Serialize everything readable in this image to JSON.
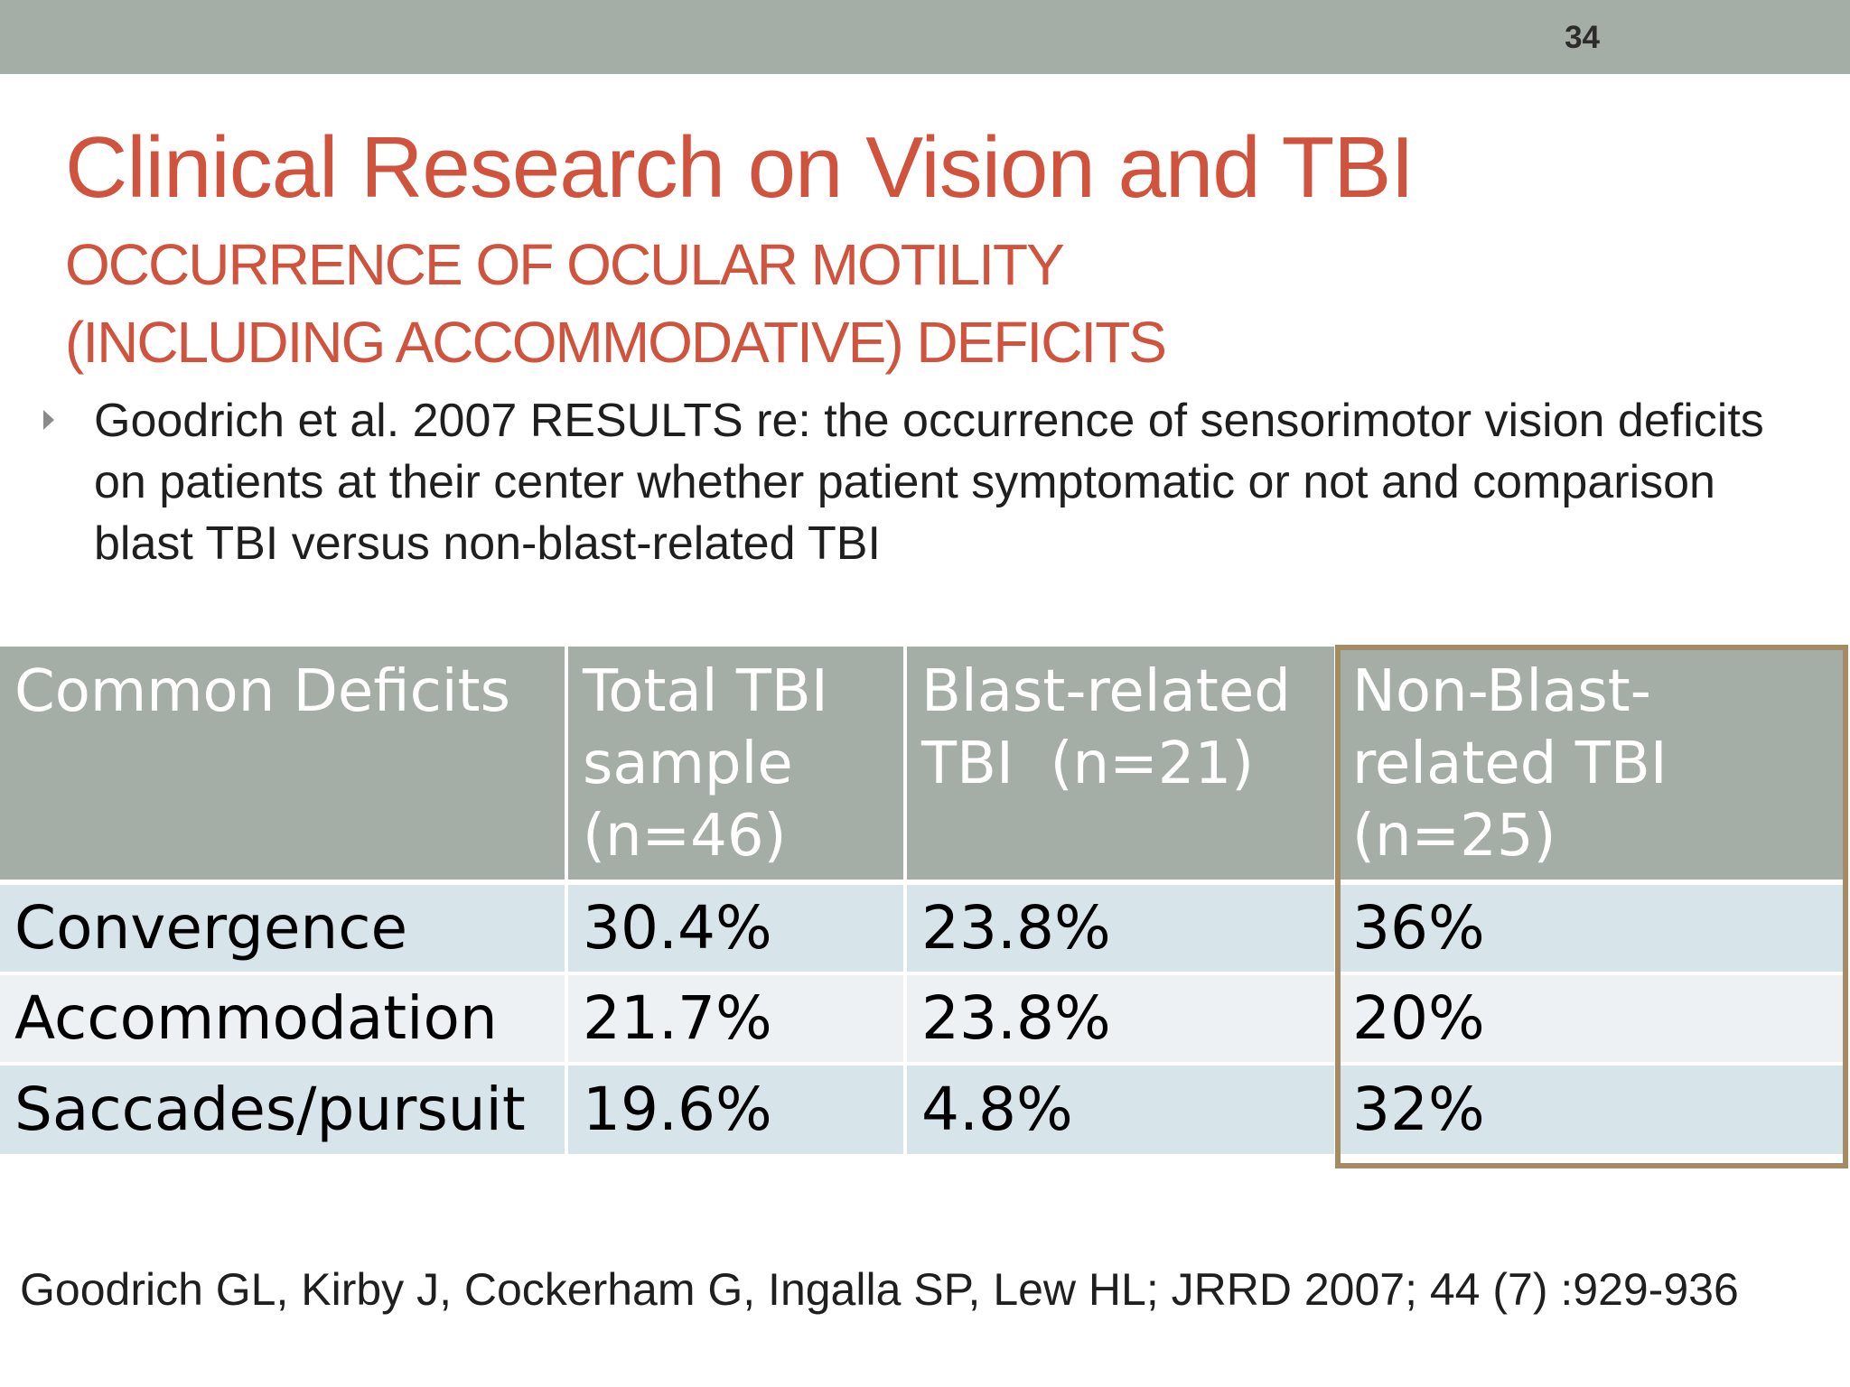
{
  "slide": {
    "number": "34",
    "title": "Clinical Research on Vision and TBI",
    "subtitle_line1": "OCCURRENCE OF OCULAR MOTILITY",
    "subtitle_line2": "(INCLUDING ACCOMMODATIVE) DEFICITS",
    "bullet": "Goodrich et al. 2007 RESULTS re: the occurrence of sensorimotor vision deficits on patients at their center whether patient symptomatic or not and comparison blast TBI versus non-blast-related TBI",
    "reference": "Goodrich GL, Kirby J, Cockerham G, Ingalla SP, Lew HL; JRRD 2007; 44 (7) :929-936"
  },
  "colors": {
    "header_bar": "#a4ada6",
    "title": "#d0533d",
    "row_odd": "#d7e5ea",
    "row_even": "#edf1f3",
    "highlight_border": "#a48b64"
  },
  "table": {
    "headers": [
      [
        "Common Deficits"
      ],
      [
        "Total TBI",
        "sample",
        "(n=46)"
      ],
      [
        "Blast-related",
        "TBI  (n=21)"
      ],
      [
        "Non-Blast-",
        "related TBI",
        "(n=25)"
      ]
    ],
    "rows": [
      [
        "Convergence",
        "30.4%",
        "23.8%",
        "36%"
      ],
      [
        "Accommodation",
        "21.7%",
        "23.8%",
        "20%"
      ],
      [
        "Saccades/pursuit",
        "19.6%",
        "4.8%",
        "32%"
      ]
    ],
    "highlighted_column": "Non-Blast-related TBI (n=25)"
  }
}
